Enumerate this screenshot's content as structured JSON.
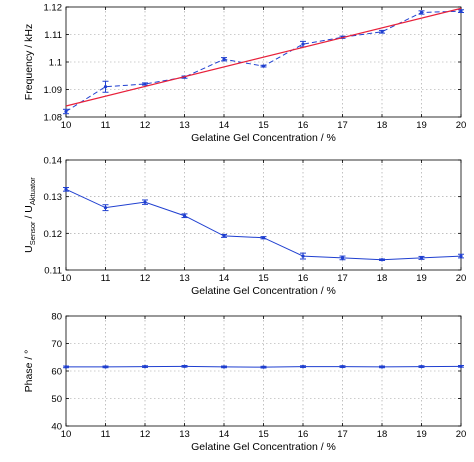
{
  "chart_data": [
    {
      "type": "line",
      "xlabel": "Gelatine Gel Concentration / %",
      "ylabel": "Frequency / kHz",
      "xlim": [
        10,
        20
      ],
      "ylim": [
        1.08,
        1.12
      ],
      "xticks": [
        "10",
        "11",
        "12",
        "13",
        "14",
        "15",
        "16",
        "17",
        "18",
        "19",
        "20"
      ],
      "yticks": [
        "1.08",
        "1.09",
        "1.1",
        "1.11",
        "1.12"
      ],
      "grid": true,
      "series": [
        {
          "style": "dashed-with-errorbars",
          "color": "#1f3fd0",
          "x": [
            10,
            11,
            12,
            13,
            14,
            15,
            16,
            17,
            18,
            19,
            20
          ],
          "y": [
            1.082,
            1.091,
            1.092,
            1.0945,
            1.101,
            1.0985,
            1.1065,
            1.109,
            1.111,
            1.118,
            1.1185
          ],
          "err": [
            0.0008,
            0.002,
            0.0004,
            0.0004,
            0.0006,
            0.0003,
            0.001,
            0.0004,
            0.0005,
            0.0006,
            0.0005
          ]
        },
        {
          "style": "fit-line",
          "color": "#e8203a",
          "x": [
            10,
            20
          ],
          "y": [
            1.084,
            1.1195
          ]
        }
      ]
    },
    {
      "type": "line",
      "xlabel": "Gelatine Gel Concentration / %",
      "ylabel": "U_Sensor / U_Aktuator",
      "ylabel_parts": {
        "u1": "U",
        "sub1": "Sensor",
        "sep": " / U",
        "sub2": "Aktuator"
      },
      "xlim": [
        10,
        20
      ],
      "ylim": [
        0.11,
        0.14
      ],
      "xticks": [
        "10",
        "11",
        "12",
        "13",
        "14",
        "15",
        "16",
        "17",
        "18",
        "19",
        "20"
      ],
      "yticks": [
        "0.11",
        "0.12",
        "0.13",
        "0.14"
      ],
      "grid": true,
      "series": [
        {
          "style": "solid-with-errorbars",
          "color": "#1f3fd0",
          "x": [
            10,
            11,
            12,
            13,
            14,
            15,
            16,
            17,
            18,
            19,
            20
          ],
          "y": [
            0.132,
            0.127,
            0.1285,
            0.1248,
            0.1193,
            0.1188,
            0.1138,
            0.1133,
            0.1128,
            0.1133,
            0.1138
          ],
          "err": [
            0.0005,
            0.0008,
            0.0006,
            0.0005,
            0.0004,
            0.0003,
            0.0008,
            0.0005,
            0.0002,
            0.0004,
            0.0005
          ]
        }
      ]
    },
    {
      "type": "line",
      "xlabel": "Gelatine Gel Concentration / %",
      "ylabel": "Phase / °",
      "xlim": [
        10,
        20
      ],
      "ylim": [
        40,
        80
      ],
      "xticks": [
        "10",
        "11",
        "12",
        "13",
        "14",
        "15",
        "16",
        "17",
        "18",
        "19",
        "20"
      ],
      "yticks": [
        "40",
        "50",
        "60",
        "70",
        "80"
      ],
      "grid": true,
      "series": [
        {
          "style": "solid-with-errorbars",
          "color": "#1f3fd0",
          "x": [
            10,
            11,
            12,
            13,
            14,
            15,
            16,
            17,
            18,
            19,
            20
          ],
          "y": [
            61.5,
            61.5,
            61.6,
            61.7,
            61.5,
            61.4,
            61.6,
            61.6,
            61.5,
            61.6,
            61.7
          ],
          "err": [
            0.3,
            0.3,
            0.3,
            0.3,
            0.3,
            0.3,
            0.3,
            0.3,
            0.3,
            0.3,
            0.3
          ]
        }
      ]
    }
  ]
}
